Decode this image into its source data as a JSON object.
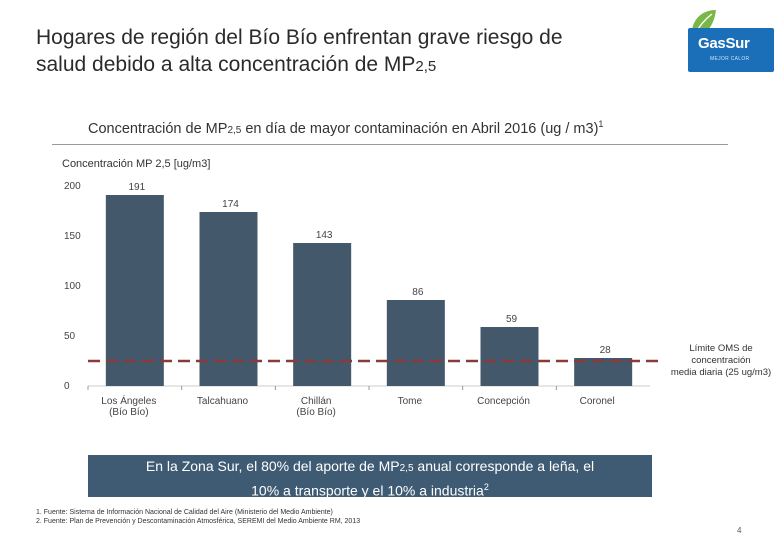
{
  "header": {
    "title_line1": "Hogares de región del Bío Bío enfrentan grave riesgo de",
    "title_line2": "salud debido a alta concentración de MP",
    "title_sub": "2,5"
  },
  "logo": {
    "text": "GasSur",
    "tagline": "MEJOR CALOR",
    "colors": {
      "brand": "#1a6fb8",
      "leaf": "#7ab648"
    }
  },
  "chart_data": {
    "type": "bar",
    "title_prefix": "Concentración de MP",
    "title_sub": "2,5",
    "title_suffix": " en día de mayor contaminación en Abril 2016 (ug / m3)",
    "title_note": "1",
    "ylabel": "Concentración MP 2,5 [ug/m3]",
    "categories": [
      [
        "Los Ángeles",
        "(Bío Bío)"
      ],
      [
        "Talcahuano"
      ],
      [
        "Chillán",
        "(Bío Bío)"
      ],
      [
        "Tome"
      ],
      [
        "Concepción"
      ],
      [
        "Coronel"
      ]
    ],
    "values": [
      191,
      174,
      143,
      86,
      59,
      28
    ],
    "value_labels": [
      "191",
      "174",
      "143",
      "86",
      "59",
      "28"
    ],
    "yticks": [
      "0",
      "50",
      "100",
      "150",
      "200"
    ],
    "ytick_values": [
      0,
      50,
      100,
      150,
      200
    ],
    "ylim": [
      0,
      200
    ],
    "bar_color": "#43586b",
    "reference_line": {
      "value": 25,
      "color": "#8b3a3a",
      "style": "dashed",
      "label": [
        "Límite OMS de",
        "concentración",
        "media diaria (25 ug/m3)"
      ]
    }
  },
  "callout": {
    "line1_prefix": "En la Zona Sur, el 80% del aporte de MP",
    "line1_sub": "2,5",
    "line1_suffix": " anual corresponde a leña, el",
    "line2": "10% a transporte y el 10% a industria",
    "line2_note": "2"
  },
  "footnotes": [
    "1. Fuente: Sistema de Información Nacional de Calidad del Aire (Ministerio del Medio Ambiente)",
    "2. Fuente: Plan de Prevención y Descontaminación Atmosférica, SEREMI del Medio Ambiente RM, 2013"
  ],
  "page_number": "4"
}
